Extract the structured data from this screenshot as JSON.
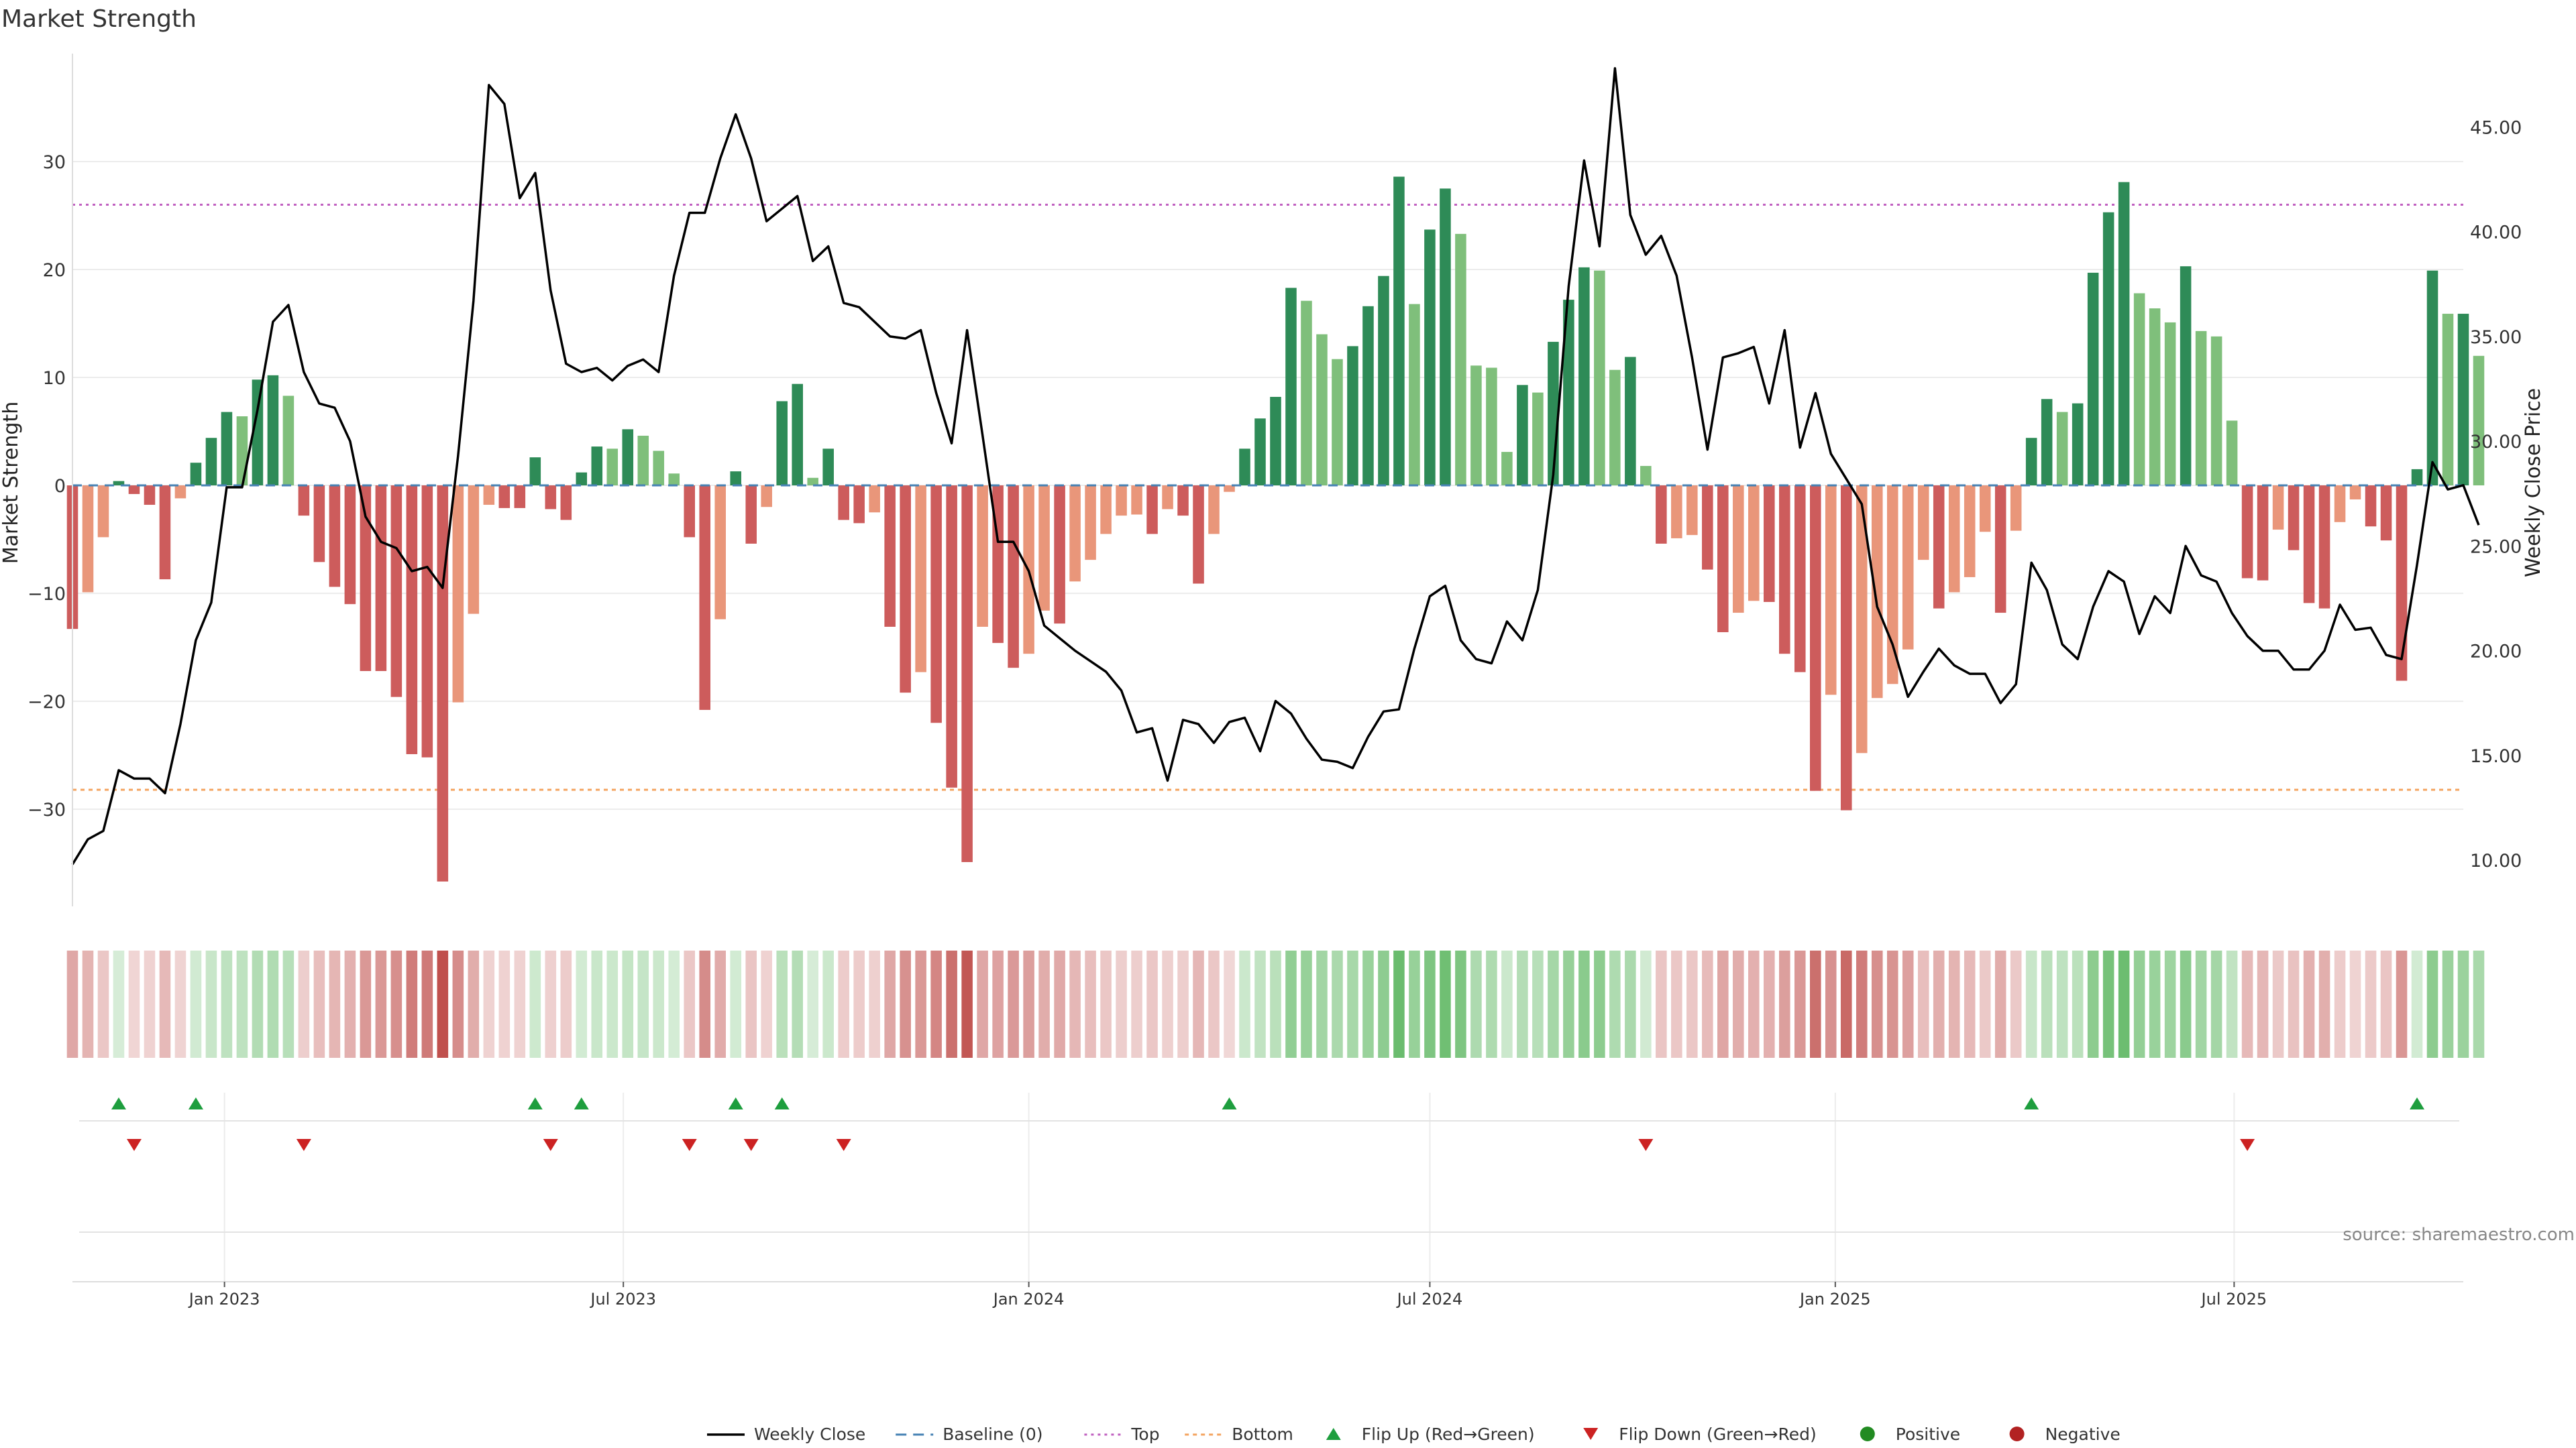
{
  "chart_data": {
    "type": "bar",
    "title": "Market Strength",
    "ylabel": "Market Strength",
    "y2label": "Weekly Close Price",
    "ylim": [
      -39,
      40
    ],
    "y2lim": [
      7.8,
      48.5
    ],
    "yticks": [
      30,
      20,
      10,
      0,
      -10,
      -20,
      -30
    ],
    "ytick_labels": [
      "30",
      "20",
      "10",
      "0",
      "−10",
      "−20",
      "−30"
    ],
    "y2ticks": [
      45,
      40,
      35,
      30,
      25,
      20,
      15,
      10
    ],
    "y2tick_labels": [
      "45.00",
      "40.00",
      "35.00",
      "30.00",
      "25.00",
      "20.00",
      "15.00",
      "10.00"
    ],
    "xlim": [
      "2022-10-24",
      "2025-10-13"
    ],
    "xticks": [
      {
        "date": "2023-01-01",
        "label": "Jan 2023"
      },
      {
        "date": "2023-07-01",
        "label": "Jul 2023"
      },
      {
        "date": "2024-01-01",
        "label": "Jan 2024"
      },
      {
        "date": "2024-07-01",
        "label": "Jul 2024"
      },
      {
        "date": "2025-01-01",
        "label": "Jan 2025"
      },
      {
        "date": "2025-07-01",
        "label": "Jul 2025"
      }
    ],
    "top_level": 26,
    "bottom_level": -28.2,
    "first_week": "2022-10-24",
    "strength": [
      -13.3,
      -9.9,
      -4.8,
      0.4,
      -0.8,
      -1.8,
      -8.7,
      -1.2,
      2.1,
      4.4,
      6.8,
      6.4,
      9.8,
      10.2,
      8.3,
      -2.8,
      -7.1,
      -9.4,
      -11,
      -17.2,
      -17.2,
      -19.6,
      -24.9,
      -25.2,
      -36.7,
      -20.1,
      -11.9,
      -1.8,
      -2.1,
      -2.1,
      2.6,
      -2.2,
      -3.2,
      1.2,
      3.6,
      3.4,
      5.2,
      4.6,
      3.2,
      1.1,
      -4.8,
      -20.8,
      -12.4,
      1.3,
      -5.4,
      -2,
      7.8,
      9.4,
      0.7,
      3.4,
      -3.2,
      -3.5,
      -2.5,
      -13.1,
      -19.2,
      -17.3,
      -22,
      -28,
      -34.9,
      -13.1,
      -14.6,
      -16.9,
      -15.6,
      -11.6,
      -12.8,
      -8.9,
      -6.9,
      -4.5,
      -2.8,
      -2.7,
      -4.5,
      -2.2,
      -2.8,
      -9.1,
      -4.5,
      -0.6,
      3.4,
      6.2,
      8.2,
      18.3,
      17.1,
      14,
      11.7,
      12.9,
      16.6,
      19.4,
      28.6,
      16.8,
      23.7,
      27.5,
      23.3,
      11.1,
      10.9,
      3.1,
      9.3,
      8.6,
      13.3,
      17.2,
      20.2,
      19.9,
      10.7,
      11.9,
      1.8,
      -5.4,
      -4.9,
      -4.6,
      -7.8,
      -13.6,
      -11.8,
      -10.7,
      -10.8,
      -15.6,
      -17.3,
      -28.3,
      -19.4,
      -30.1,
      -24.8,
      -19.7,
      -18.4,
      -15.2,
      -6.9,
      -11.4,
      -9.9,
      -8.5,
      -4.3,
      -11.8,
      -4.2,
      4.4,
      8,
      6.8,
      7.6,
      19.7,
      25.3,
      28.1,
      17.8,
      16.4,
      15.1,
      20.3,
      14.3,
      13.8,
      6,
      -8.6,
      -8.8,
      -4.1,
      -6,
      -10.9,
      -11.4,
      -3.4,
      -1.3,
      -3.8,
      -5.1,
      -18.1,
      1.5,
      19.9,
      15.9,
      15.9,
      12
    ],
    "weekly_close": [
      9.8,
      11,
      11.4,
      14.3,
      13.9,
      13.9,
      13.2,
      16.5,
      20.5,
      22.3,
      27.8,
      27.8,
      31.5,
      35.7,
      36.5,
      33.3,
      31.8,
      31.6,
      30,
      26.4,
      25.2,
      24.9,
      23.8,
      24,
      23,
      29.3,
      36.7,
      47,
      46.1,
      41.6,
      42.8,
      37.2,
      33.7,
      33.3,
      33.5,
      32.9,
      33.6,
      33.9,
      33.3,
      37.9,
      40.9,
      40.9,
      43.5,
      45.6,
      43.5,
      40.5,
      41.1,
      41.7,
      38.6,
      39.3,
      36.6,
      36.4,
      35.7,
      35,
      34.9,
      35.3,
      32.3,
      29.9,
      35.3,
      30.3,
      25.2,
      25.2,
      23.8,
      21.2,
      20.6,
      20,
      19.5,
      19,
      18.1,
      16.1,
      16.3,
      13.8,
      16.7,
      16.5,
      15.6,
      16.6,
      16.8,
      15.2,
      17.6,
      17,
      15.8,
      14.8,
      14.7,
      14.4,
      15.9,
      17.1,
      17.2,
      20.1,
      22.6,
      23.1,
      20.5,
      19.6,
      19.4,
      21.4,
      20.5,
      22.9,
      28.4,
      37.4,
      43.4,
      39.3,
      47.8,
      40.8,
      38.9,
      39.8,
      37.9,
      34,
      29.6,
      34,
      34.2,
      34.5,
      31.8,
      35.3,
      29.7,
      32.3,
      29.4,
      28.2,
      27,
      22.1,
      20.3,
      17.8,
      19,
      20.1,
      19.3,
      18.9,
      18.9,
      17.5,
      18.4,
      24.2,
      22.9,
      20.3,
      19.6,
      22.1,
      23.8,
      23.3,
      20.8,
      22.6,
      21.8,
      25,
      23.6,
      23.3,
      21.8,
      20.7,
      20,
      20,
      19.1,
      19.1,
      20,
      22.2,
      21,
      21.1,
      19.8,
      19.6,
      24.1,
      29,
      27.7,
      27.9,
      26
    ],
    "flip_up_weeks": [
      3,
      8,
      30,
      33,
      43,
      46,
      75,
      127,
      152
    ],
    "flip_down_weeks": [
      4,
      15,
      31,
      40,
      44,
      50,
      102,
      141
    ],
    "source": "source: sharemaestro.com",
    "legend": [
      {
        "key": "close",
        "label": "Weekly Close"
      },
      {
        "key": "baseline",
        "label": "Baseline (0)"
      },
      {
        "key": "top",
        "label": "Top"
      },
      {
        "key": "bottom",
        "label": "Bottom"
      },
      {
        "key": "flip_up",
        "label": "Flip Up (Red→Green)"
      },
      {
        "key": "flip_down",
        "label": "Flip Down (Green→Red)"
      },
      {
        "key": "positive",
        "label": "Positive"
      },
      {
        "key": "negative",
        "label": "Negative"
      }
    ],
    "legend_position": "bottom-center",
    "grid": true,
    "colors": {
      "pos_dark": "#2e8b57",
      "pos_light": "#7fbf7b",
      "neg_dark": "#cd5c5c",
      "neg_light": "#e9967a",
      "close_line": "#000000",
      "baseline": "#4682b4",
      "top": "#c060c0",
      "bottom": "#f4a460",
      "flip_up": "#1e9e3e",
      "flip_down": "#cc2222",
      "positive_dot": "#228b22",
      "negative_dot": "#b22222"
    }
  }
}
